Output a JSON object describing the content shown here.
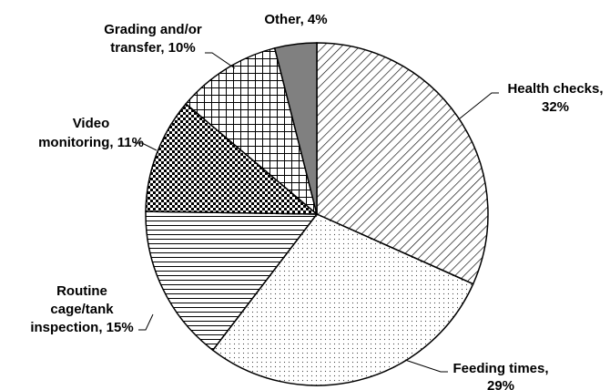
{
  "chart_data": {
    "type": "pie",
    "categories": [
      [
        "Health checks,",
        "32%"
      ],
      [
        "Feeding times,",
        "29%"
      ],
      [
        "Routine",
        "cage/tank",
        "inspection, 15%"
      ],
      [
        "Video",
        "monitoring, 11%"
      ],
      [
        "Grading and/or",
        "transfer, 10%"
      ],
      [
        "Other, 4%"
      ]
    ],
    "values": [
      32,
      29,
      15,
      11,
      10,
      4
    ],
    "colors": [
      "#ffffff",
      "#ffffff",
      "#ffffff",
      "#ffffff",
      "#ffffff",
      "#808080"
    ]
  }
}
